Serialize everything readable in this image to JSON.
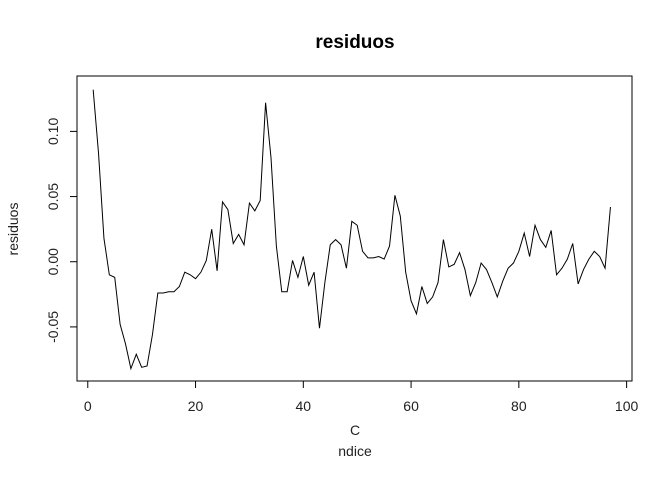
{
  "chart_data": {
    "type": "line",
    "title": "residuos",
    "xlabel_lines": [
      "C",
      "ndice"
    ],
    "ylabel": "residuos",
    "xlim": [
      -2,
      101
    ],
    "ylim": [
      -0.0915,
      0.1425
    ],
    "xticks": [
      0,
      20,
      40,
      60,
      80,
      100
    ],
    "yticks": [
      -0.05,
      0.0,
      0.05,
      0.1
    ],
    "xtick_labels": [
      "0",
      "20",
      "40",
      "60",
      "80",
      "100"
    ],
    "ytick_labels": [
      "-0.05",
      "0.00",
      "0.05",
      "0.10"
    ],
    "grid": false,
    "line_color": "#000000",
    "series": [
      {
        "x": [
          1,
          2,
          3,
          4,
          5,
          6,
          7,
          8,
          9,
          10,
          11,
          12,
          13,
          14,
          15,
          16,
          17,
          18,
          19,
          20,
          21,
          22,
          23,
          24,
          25,
          26,
          27,
          28,
          29,
          30,
          31,
          32,
          33,
          34,
          35,
          36,
          37,
          38,
          39,
          40,
          41,
          42,
          43,
          44,
          45,
          46,
          47,
          48,
          49,
          50,
          51,
          52,
          53,
          54,
          55,
          56,
          57,
          58,
          59,
          60,
          61,
          62,
          63,
          64,
          65,
          66,
          67,
          68,
          69,
          70,
          71,
          72,
          73,
          74,
          75,
          76,
          77,
          78,
          79,
          80,
          81,
          82,
          83,
          84,
          85,
          86,
          87,
          88,
          89,
          90,
          91,
          92,
          93,
          94,
          95,
          96,
          97
        ],
        "y": [
          0.132,
          0.083,
          0.018,
          -0.01,
          -0.012,
          -0.048,
          -0.063,
          -0.082,
          -0.071,
          -0.081,
          -0.08,
          -0.056,
          -0.024,
          -0.024,
          -0.023,
          -0.023,
          -0.019,
          -0.008,
          -0.01,
          -0.013,
          -0.008,
          0.001,
          0.025,
          -0.007,
          0.046,
          0.04,
          0.014,
          0.021,
          0.013,
          0.045,
          0.039,
          0.047,
          0.122,
          0.08,
          0.012,
          -0.023,
          -0.023,
          0.001,
          -0.012,
          0.004,
          -0.018,
          -0.008,
          -0.051,
          -0.016,
          0.013,
          0.017,
          0.013,
          -0.005,
          0.031,
          0.028,
          0.008,
          0.003,
          0.003,
          0.004,
          0.002,
          0.012,
          0.051,
          0.035,
          -0.008,
          -0.03,
          -0.04,
          -0.019,
          -0.032,
          -0.027,
          -0.016,
          0.017,
          -0.004,
          -0.002,
          0.007,
          -0.006,
          -0.026,
          -0.016,
          -0.001,
          -0.006,
          -0.016,
          -0.027,
          -0.015,
          -0.005,
          -0.001,
          0.008,
          0.022,
          0.004,
          0.028,
          0.017,
          0.011,
          0.024,
          -0.01,
          -0.005,
          0.002,
          0.014,
          -0.017,
          -0.006,
          0.002,
          0.008,
          0.004,
          -0.005,
          0.042
        ]
      }
    ]
  }
}
